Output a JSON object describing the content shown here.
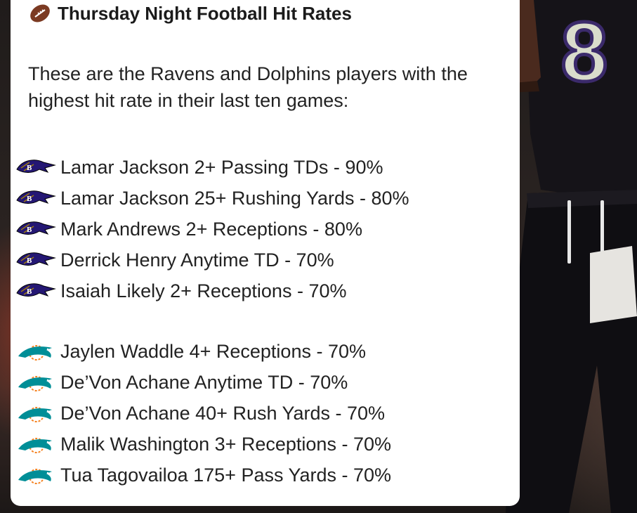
{
  "header": {
    "icon": "football-icon",
    "title": "Thursday Night Football Hit Rates"
  },
  "intro": "These are the Ravens and Dolphins players with the highest hit rate in their last ten games:",
  "ravens": {
    "logo_icon": "ravens-logo-icon",
    "items": [
      "Lamar Jackson 2+ Passing TDs - 90%",
      "Lamar Jackson 25+ Rushing Yards - 80%",
      "Mark Andrews 2+ Receptions - 80%",
      "Derrick Henry Anytime TD - 70%",
      "Isaiah Likely 2+ Receptions - 70%"
    ]
  },
  "dolphins": {
    "logo_icon": "dolphins-logo-icon",
    "items": [
      "Jaylen Waddle 4+ Receptions - 70%",
      "De’Von Achane Anytime TD - 70%",
      "De’Von Achane 40+ Rush Yards - 70%",
      "Malik Washington 3+ Receptions - 70%",
      "Tua Tagovailoa 175+ Pass Yards - 70%"
    ]
  },
  "colors": {
    "ravens_purple": "#241773",
    "dolphins_aqua": "#008e97",
    "dolphins_orange": "#f58220",
    "football_brown": "#7b3a22"
  },
  "photo": {
    "jersey_number": "8"
  }
}
